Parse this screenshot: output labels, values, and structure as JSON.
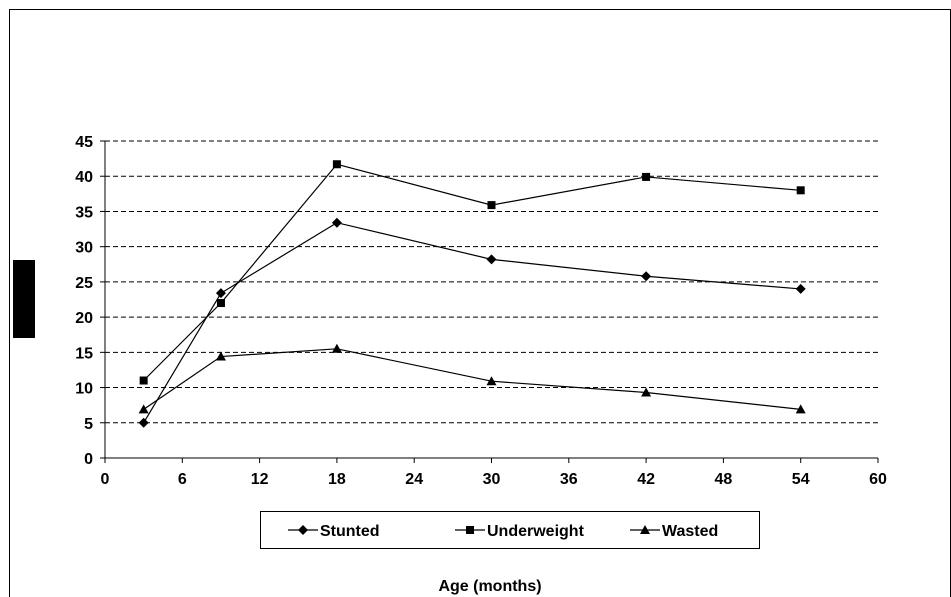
{
  "chart_data": {
    "type": "line",
    "title": "",
    "xlabel": "Age (months)",
    "ylabel": "",
    "xlim": [
      0,
      60
    ],
    "ylim": [
      0,
      45
    ],
    "xticks": [
      0,
      6,
      12,
      18,
      24,
      30,
      36,
      42,
      48,
      54,
      60
    ],
    "yticks": [
      0,
      5,
      10,
      15,
      20,
      25,
      30,
      35,
      40,
      45
    ],
    "grid": "horizontal-dashed",
    "legend_position": "bottom",
    "series": [
      {
        "name": "Stunted",
        "marker": "diamond",
        "x": [
          3,
          9,
          18,
          30,
          42,
          54
        ],
        "values": [
          5,
          23.4,
          33.4,
          28.2,
          25.8,
          24
        ]
      },
      {
        "name": "Underweight",
        "marker": "square",
        "x": [
          3,
          9,
          18,
          30,
          42,
          54
        ],
        "values": [
          11,
          22,
          41.7,
          35.9,
          39.9,
          38
        ]
      },
      {
        "name": "Wasted",
        "marker": "triangle",
        "x": [
          3,
          9,
          18,
          30,
          42,
          54
        ],
        "values": [
          6.9,
          14.4,
          15.5,
          10.9,
          9.3,
          6.9
        ]
      }
    ],
    "colors": {
      "line": "#000000",
      "grid": "#000000",
      "background": "#ffffff"
    }
  }
}
